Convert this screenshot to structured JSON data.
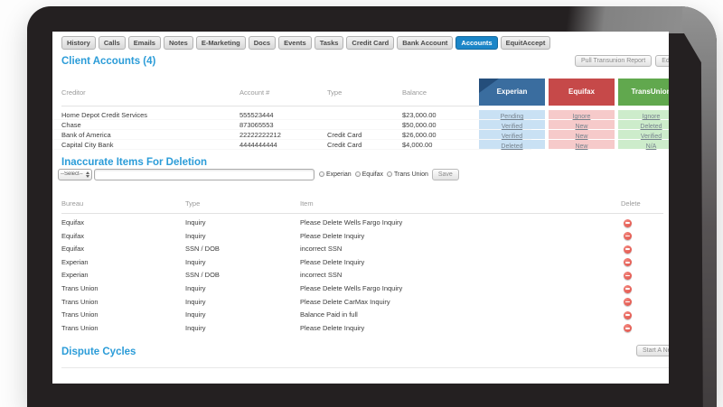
{
  "colors": {
    "accent": "#2b9cd8",
    "active_tab": "#1b86c8",
    "delete_icon": "#dd4b42"
  },
  "tab_bar": {
    "active": "Accounts",
    "tabs": [
      "History",
      "Calls",
      "Emails",
      "Notes",
      "E-Marketing",
      "Docs",
      "Events",
      "Tasks",
      "Credit Card",
      "Bank Account",
      "Accounts",
      "EquitAccept"
    ]
  },
  "client_accounts": {
    "title": "Client Accounts (4)",
    "pull_report_label": "Pull Transunion Report",
    "edit_label": "Edit",
    "columns": [
      "Creditor",
      "Account #",
      "Type",
      "Balance"
    ],
    "rows": [
      {
        "creditor": "Home Depot Credit Services",
        "account": "555523444",
        "type": "",
        "balance": "$23,000.00"
      },
      {
        "creditor": "Chase",
        "account": "873065553",
        "type": "",
        "balance": "$50,000.00"
      },
      {
        "creditor": "Bank of America",
        "account": "22222222212",
        "type": "Credit Card",
        "balance": "$26,000.00"
      },
      {
        "creditor": "Capital City Bank",
        "account": "4444444444",
        "type": "Credit Card",
        "balance": "$4,000.00"
      }
    ],
    "bureaus": [
      {
        "name": "Experian",
        "header_color": "#3a6d9f",
        "cell_color": "#c9e1f4",
        "statuses": [
          "Pending",
          "Verified",
          "Verified",
          "Deleted"
        ]
      },
      {
        "name": "Equifax",
        "header_color": "#c64949",
        "cell_color": "#f6caca",
        "statuses": [
          "Ignore",
          "New",
          "New",
          "New"
        ]
      },
      {
        "name": "TransUnion",
        "header_color": "#61a84e",
        "cell_color": "#cdeccb",
        "statuses": [
          "Ignore",
          "Deleted",
          "Verified",
          "N/A"
        ]
      }
    ]
  },
  "deletion": {
    "title": "Inaccurate Items For Deletion",
    "select_value": "--Select--",
    "input_value": "",
    "checkboxes": [
      "Experian",
      "Equifax",
      "Trans Union"
    ],
    "save_label": "Save",
    "columns": [
      "Bureau",
      "Type",
      "Item",
      "Delete"
    ],
    "items": [
      {
        "bureau": "Equifax",
        "type": "Inquiry",
        "item": "Please Delete Wells Fargo Inquiry"
      },
      {
        "bureau": "Equifax",
        "type": "Inquiry",
        "item": "Please Delete Inquiry"
      },
      {
        "bureau": "Equifax",
        "type": "SSN / DOB",
        "item": "incorrect SSN"
      },
      {
        "bureau": "Experian",
        "type": "Inquiry",
        "item": "Please Delete Inquiry"
      },
      {
        "bureau": "Experian",
        "type": "SSN / DOB",
        "item": "incorrect SSN"
      },
      {
        "bureau": "Trans Union",
        "type": "Inquiry",
        "item": "Please Delete Wells Fargo Inquiry"
      },
      {
        "bureau": "Trans Union",
        "type": "Inquiry",
        "item": "Please Delete CarMax Inquiry"
      },
      {
        "bureau": "Trans Union",
        "type": "Inquiry",
        "item": "Balance Paid in full"
      },
      {
        "bureau": "Trans Union",
        "type": "Inquiry",
        "item": "Please Delete Inquiry"
      }
    ]
  },
  "dispute": {
    "title": "Dispute Cycles",
    "start_button_label": "Start A New"
  }
}
